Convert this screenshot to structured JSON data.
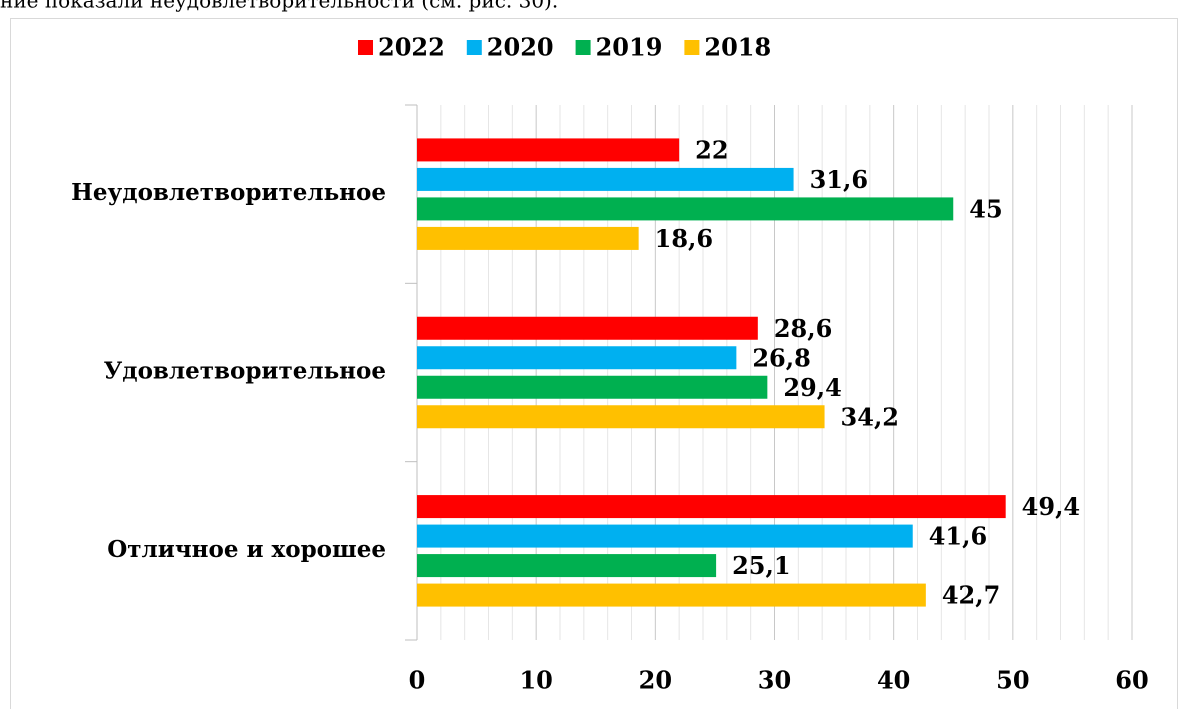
{
  "top_text": "ние показали неудовлетворительности (см. рис. 30).",
  "chart_data": {
    "type": "barh",
    "categories": [
      "Неудовлетворительное",
      "Удовлетворительное",
      "Отличное и хорошее"
    ],
    "series": [
      {
        "name": "2022",
        "color": "#ff0000",
        "values": [
          22,
          28.6,
          49.4
        ],
        "value_labels": [
          "22",
          "28,6",
          "49,4"
        ]
      },
      {
        "name": "2020",
        "color": "#00b0f0",
        "values": [
          31.6,
          26.8,
          41.6
        ],
        "value_labels": [
          "31,6",
          "26,8",
          "41,6"
        ]
      },
      {
        "name": "2019",
        "color": "#00b050",
        "values": [
          45,
          29.4,
          25.1
        ],
        "value_labels": [
          "45",
          "29,4",
          "25,1"
        ]
      },
      {
        "name": "2018",
        "color": "#ffc000",
        "values": [
          18.6,
          34.2,
          42.7
        ],
        "value_labels": [
          "18,6",
          "34,2",
          "42,7"
        ]
      }
    ],
    "xlim": [
      0,
      60
    ],
    "xticks": [
      0,
      10,
      20,
      30,
      40,
      50,
      60
    ],
    "minor_xticks": [
      2,
      4,
      6,
      8,
      12,
      14,
      16,
      18,
      22,
      24,
      26,
      28,
      32,
      34,
      36,
      38,
      42,
      44,
      46,
      48,
      52,
      54,
      56,
      58
    ],
    "grid": true,
    "legend": "top"
  }
}
